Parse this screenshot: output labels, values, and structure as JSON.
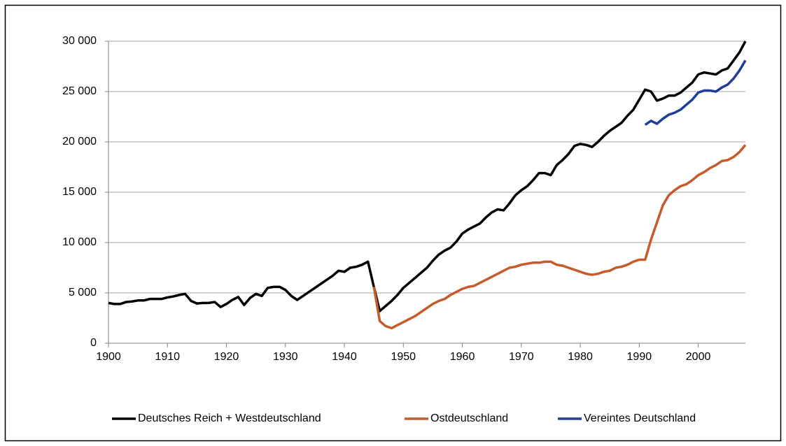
{
  "chart_data": {
    "type": "line",
    "x": [
      1900,
      1901,
      1902,
      1903,
      1904,
      1905,
      1906,
      1907,
      1908,
      1909,
      1910,
      1911,
      1912,
      1913,
      1914,
      1915,
      1916,
      1917,
      1918,
      1919,
      1920,
      1921,
      1922,
      1923,
      1924,
      1925,
      1926,
      1927,
      1928,
      1929,
      1930,
      1931,
      1932,
      1933,
      1934,
      1935,
      1936,
      1937,
      1938,
      1939,
      1940,
      1941,
      1942,
      1943,
      1944,
      1945,
      1946,
      1947,
      1948,
      1949,
      1950,
      1951,
      1952,
      1953,
      1954,
      1955,
      1956,
      1957,
      1958,
      1959,
      1960,
      1961,
      1962,
      1963,
      1964,
      1965,
      1966,
      1967,
      1968,
      1969,
      1970,
      1971,
      1972,
      1973,
      1974,
      1975,
      1976,
      1977,
      1978,
      1979,
      1980,
      1981,
      1982,
      1983,
      1984,
      1985,
      1986,
      1987,
      1988,
      1989,
      1990,
      1991,
      1992,
      1993,
      1994,
      1995,
      1996,
      1997,
      1998,
      1999,
      2000,
      2001,
      2002,
      2003,
      2004,
      2005,
      2006,
      2007,
      2008
    ],
    "series": [
      {
        "name": "Deutsches Reich + Westdeutschland",
        "color": "#000000",
        "values": [
          4000,
          3900,
          3900,
          4100,
          4150,
          4250,
          4250,
          4400,
          4400,
          4400,
          4550,
          4650,
          4800,
          4900,
          4200,
          3950,
          4000,
          4000,
          4100,
          3600,
          3900,
          4300,
          4600,
          3800,
          4500,
          4900,
          4700,
          5500,
          5600,
          5600,
          5300,
          4700,
          4300,
          4700,
          5100,
          5500,
          5900,
          6300,
          6700,
          7200,
          7100,
          7500,
          7600,
          7800,
          8100,
          5600,
          3200,
          3700,
          4200,
          4800,
          5500,
          6000,
          6500,
          7000,
          7500,
          8200,
          8800,
          9200,
          9500,
          10100,
          10900,
          11300,
          11600,
          11900,
          12500,
          13000,
          13300,
          13200,
          13900,
          14700,
          15200,
          15600,
          16200,
          16900,
          16900,
          16700,
          17700,
          18200,
          18800,
          19600,
          19800,
          19700,
          19500,
          20000,
          20600,
          21100,
          21500,
          21900,
          22600,
          23200,
          24200,
          25200,
          25000,
          24100,
          24300,
          24600,
          24600,
          24900,
          25400,
          25900,
          26700,
          26900,
          26800,
          26700,
          27100,
          27300,
          28100,
          28900,
          30000
        ]
      },
      {
        "name": "Ostdeutschland",
        "color": "#c65a2b",
        "values": [
          null,
          null,
          null,
          null,
          null,
          null,
          null,
          null,
          null,
          null,
          null,
          null,
          null,
          null,
          null,
          null,
          null,
          null,
          null,
          null,
          null,
          null,
          null,
          null,
          null,
          null,
          null,
          null,
          null,
          null,
          null,
          null,
          null,
          null,
          null,
          null,
          null,
          null,
          null,
          null,
          null,
          null,
          null,
          null,
          null,
          5600,
          2200,
          1700,
          1500,
          1800,
          2100,
          2400,
          2700,
          3100,
          3500,
          3900,
          4200,
          4400,
          4800,
          5100,
          5400,
          5600,
          5700,
          6000,
          6300,
          6600,
          6900,
          7200,
          7500,
          7600,
          7800,
          7900,
          8000,
          8000,
          8100,
          8100,
          7800,
          7700,
          7500,
          7300,
          7100,
          6900,
          6800,
          6900,
          7100,
          7200,
          7500,
          7600,
          7800,
          8100,
          8300,
          8300,
          10300,
          12000,
          13700,
          14700,
          15200,
          15600,
          15800,
          16200,
          16700,
          17000,
          17400,
          17700,
          18100,
          18200,
          18500,
          19000,
          19700
        ]
      },
      {
        "name": "Vereintes Deutschland",
        "color": "#1f3d99",
        "values": [
          null,
          null,
          null,
          null,
          null,
          null,
          null,
          null,
          null,
          null,
          null,
          null,
          null,
          null,
          null,
          null,
          null,
          null,
          null,
          null,
          null,
          null,
          null,
          null,
          null,
          null,
          null,
          null,
          null,
          null,
          null,
          null,
          null,
          null,
          null,
          null,
          null,
          null,
          null,
          null,
          null,
          null,
          null,
          null,
          null,
          null,
          null,
          null,
          null,
          null,
          null,
          null,
          null,
          null,
          null,
          null,
          null,
          null,
          null,
          null,
          null,
          null,
          null,
          null,
          null,
          null,
          null,
          null,
          null,
          null,
          null,
          null,
          null,
          null,
          null,
          null,
          null,
          null,
          null,
          null,
          null,
          null,
          null,
          null,
          null,
          null,
          null,
          null,
          null,
          null,
          null,
          21700,
          22100,
          21800,
          22300,
          22700,
          22900,
          23200,
          23700,
          24200,
          24900,
          25100,
          25100,
          25000,
          25400,
          25700,
          26300,
          27100,
          28100
        ]
      }
    ],
    "xlim": [
      1900,
      2008
    ],
    "xticks": [
      1900,
      1910,
      1920,
      1930,
      1940,
      1950,
      1960,
      1970,
      1980,
      1990,
      2000
    ],
    "ylim": [
      0,
      30000
    ],
    "yticks": [
      0,
      {
        "value": 5000,
        "label": "5 000"
      },
      {
        "value": 10000,
        "label": "10 000"
      },
      {
        "value": 15000,
        "label": "15 000"
      },
      {
        "value": 20000,
        "label": "20 000"
      },
      {
        "value": 25000,
        "label": "25 000"
      },
      {
        "value": 30000,
        "label": "30 000"
      }
    ],
    "grid": true,
    "legend": "bottom"
  }
}
